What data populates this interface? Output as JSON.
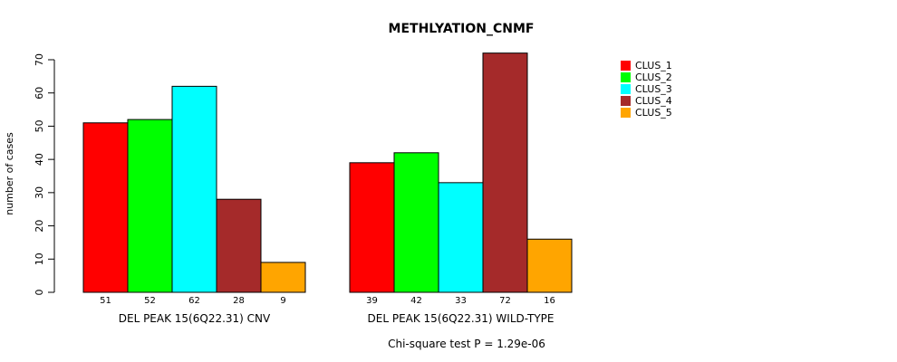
{
  "chart_data": {
    "type": "bar",
    "title": "METHLYATION_CNMF",
    "ylabel": "number of cases",
    "ylim": [
      0,
      70
    ],
    "yticks": [
      0,
      10,
      20,
      30,
      40,
      50,
      60,
      70
    ],
    "groups": [
      "DEL PEAK 15(6Q22.31) CNV",
      "DEL PEAK 15(6Q22.31) WILD-TYPE"
    ],
    "series": [
      {
        "name": "CLUS_1",
        "color": "#ff0000",
        "values": [
          51,
          39
        ]
      },
      {
        "name": "CLUS_2",
        "color": "#00ff00",
        "values": [
          52,
          42
        ]
      },
      {
        "name": "CLUS_3",
        "color": "#00ffff",
        "values": [
          62,
          33
        ]
      },
      {
        "name": "CLUS_4",
        "color": "#a52a2a",
        "values": [
          28,
          72
        ]
      },
      {
        "name": "CLUS_5",
        "color": "#ffa500",
        "values": [
          9,
          16
        ]
      }
    ],
    "footer": "Chi-square test P = 1.29e-06",
    "legend_position": "top-right"
  }
}
